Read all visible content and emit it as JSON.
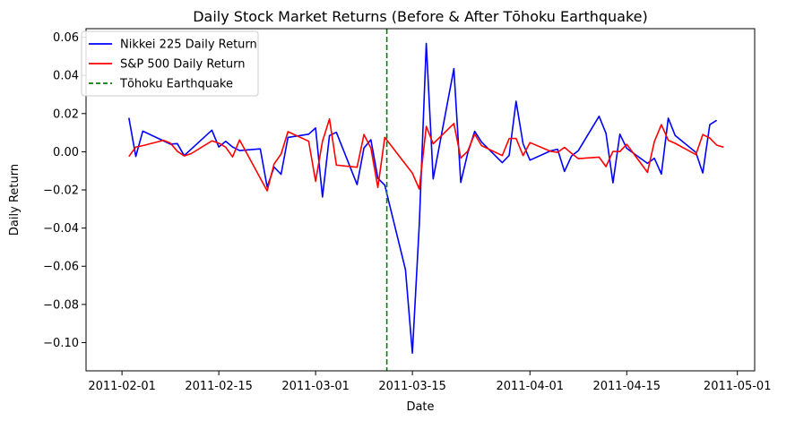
{
  "chart_data": {
    "type": "line",
    "title": "Daily Stock Market Returns (Before & After Tōhoku Earthquake)",
    "xlabel": "Date",
    "ylabel": "Daily Return",
    "x_ticks": [
      {
        "day": 0,
        "label": "2011-02-01"
      },
      {
        "day": 14,
        "label": "2011-02-15"
      },
      {
        "day": 28,
        "label": "2011-03-01"
      },
      {
        "day": 42,
        "label": "2011-03-15"
      },
      {
        "day": 59,
        "label": "2011-04-01"
      },
      {
        "day": 73,
        "label": "2011-04-15"
      },
      {
        "day": 89,
        "label": "2011-05-01"
      }
    ],
    "y_ticks": [
      {
        "value": 0.06,
        "label": "0.06"
      },
      {
        "value": 0.04,
        "label": "0.04"
      },
      {
        "value": 0.02,
        "label": "0.02"
      },
      {
        "value": 0.0,
        "label": "0.00"
      },
      {
        "value": -0.02,
        "label": "−0.02"
      },
      {
        "value": -0.04,
        "label": "−0.04"
      },
      {
        "value": -0.06,
        "label": "−0.06"
      },
      {
        "value": -0.08,
        "label": "−0.08"
      },
      {
        "value": -0.1,
        "label": "−0.10"
      }
    ],
    "xlim": [
      -5.2,
      91.5
    ],
    "ylim": [
      -0.1148,
      0.0645
    ],
    "legend_position": "top-left",
    "series": [
      {
        "name": "Nikkei 225 Daily Return",
        "color": "#0000ff",
        "x": [
          1,
          2,
          3,
          7,
          8,
          9,
          13,
          14,
          15,
          16,
          17,
          20,
          21,
          22,
          23,
          24,
          27,
          28,
          29,
          30,
          31,
          34,
          35,
          36,
          37,
          38,
          41,
          42,
          43,
          44,
          45,
          48,
          49,
          50,
          51,
          52,
          55,
          56,
          57,
          58,
          59,
          62,
          63,
          64,
          65,
          66,
          69,
          70,
          71,
          72,
          73,
          76,
          77,
          78,
          79,
          80,
          83,
          84,
          85,
          86
        ],
        "values": [
          0.0178,
          -0.0025,
          0.0108,
          0.004,
          0.0043,
          -0.002,
          0.0113,
          0.0025,
          0.0055,
          0.0025,
          0.0006,
          0.0015,
          -0.0185,
          -0.008,
          -0.0118,
          0.0075,
          0.0092,
          0.0125,
          -0.0237,
          0.0085,
          0.0102,
          -0.0172,
          0.002,
          0.0063,
          -0.0139,
          -0.0175,
          -0.0618,
          -0.1055,
          -0.0382,
          0.0568,
          -0.0142,
          0.0435,
          -0.0161,
          -0.0008,
          0.0107,
          0.0051,
          -0.0057,
          -0.0019,
          0.0265,
          0.0042,
          -0.0044,
          0.0005,
          0.0013,
          -0.0103,
          -0.0023,
          0.0006,
          0.0186,
          0.0097,
          -0.0163,
          0.0092,
          0.0018,
          -0.0061,
          -0.0034,
          -0.0117,
          0.0176,
          0.0085,
          -0.0003,
          -0.0111,
          0.0142,
          0.0165
        ]
      },
      {
        "name": "S&P 500 Daily Return",
        "color": "#ff0000",
        "x": [
          1,
          2,
          3,
          6,
          7,
          8,
          9,
          10,
          13,
          14,
          15,
          16,
          17,
          21,
          22,
          23,
          24,
          27,
          28,
          29,
          30,
          31,
          34,
          35,
          36,
          37,
          38,
          42,
          43,
          44,
          45,
          48,
          49,
          50,
          51,
          52,
          55,
          56,
          57,
          58,
          59,
          62,
          63,
          64,
          65,
          66,
          69,
          70,
          71,
          72,
          73,
          76,
          77,
          78,
          79,
          80,
          83,
          84,
          85,
          86,
          87
        ],
        "values": [
          -0.0025,
          0.0025,
          0.0032,
          0.006,
          0.0045,
          0.0003,
          -0.0022,
          -0.001,
          0.0057,
          0.0045,
          0.0024,
          -0.0027,
          0.0062,
          -0.0205,
          -0.0064,
          -0.0012,
          0.0105,
          0.0055,
          -0.0155,
          0.0055,
          0.0172,
          -0.007,
          -0.0081,
          0.009,
          0.002,
          -0.0187,
          0.0075,
          -0.0112,
          -0.0195,
          0.0133,
          0.0042,
          0.0148,
          -0.0033,
          0.0003,
          0.0093,
          0.0032,
          -0.002,
          0.0069,
          0.007,
          -0.002,
          0.0048,
          0.0002,
          -0.0003,
          0.0023,
          -0.0008,
          -0.0036,
          -0.0028,
          -0.0078,
          0.0002,
          0.0001,
          0.0039,
          -0.0108,
          0.0053,
          0.0142,
          0.006,
          0.0044,
          -0.0015,
          0.009,
          0.0072,
          0.0035,
          0.0024
        ]
      }
    ],
    "vline": {
      "name": "Tōhoku Earthquake",
      "day": 38.3,
      "color": "#008000",
      "style": "dashed"
    }
  }
}
